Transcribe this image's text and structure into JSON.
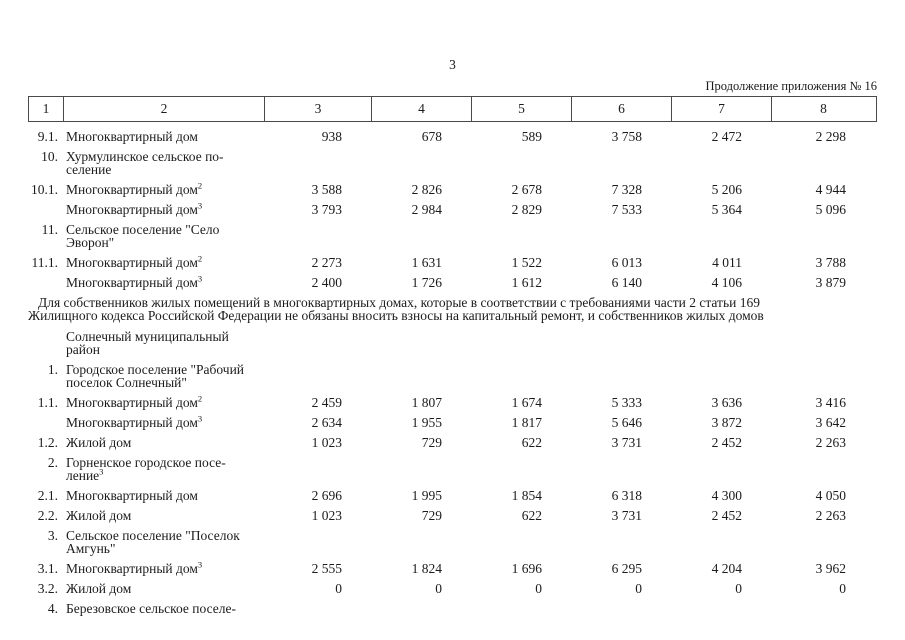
{
  "page": {
    "number": "3",
    "continuation_note": "Продолжение приложения № 16"
  },
  "colors": {
    "background": "#ffffff",
    "text": "#1b1b1b",
    "table_border": "#4a4a4a"
  },
  "table": {
    "column_headers": [
      "1",
      "2",
      "3",
      "4",
      "5",
      "6",
      "7",
      "8"
    ],
    "rows_top": [
      {
        "num": "9.1.",
        "label_lines": [
          "Многоквартирный дом"
        ],
        "sup": "",
        "values": [
          "938",
          "678",
          "589",
          "3 758",
          "2 472",
          "2 298"
        ]
      },
      {
        "num": "10.",
        "label_lines": [
          "Хурмулинское сельское по-",
          "селение"
        ],
        "sup": "",
        "values": []
      },
      {
        "num": "10.1.",
        "label_lines": [
          "Многоквартирный дом"
        ],
        "sup": "2",
        "values": [
          "3 588",
          "2 826",
          "2 678",
          "7 328",
          "5 206",
          "4 944"
        ]
      },
      {
        "num": "",
        "label_lines": [
          "Многоквартирный дом"
        ],
        "sup": "3",
        "values": [
          "3 793",
          "2 984",
          "2 829",
          "7 533",
          "5 364",
          "5 096"
        ]
      },
      {
        "num": "11.",
        "label_lines": [
          "Сельское поселение \"Село",
          "Эворон\""
        ],
        "sup": "",
        "values": []
      },
      {
        "num": "11.1.",
        "label_lines": [
          "Многоквартирный дом"
        ],
        "sup": "2",
        "values": [
          "2 273",
          "1 631",
          "1 522",
          "6 013",
          "4 011",
          "3 788"
        ]
      },
      {
        "num": "",
        "label_lines": [
          "Многоквартирный дом"
        ],
        "sup": "3",
        "values": [
          "2 400",
          "1 726",
          "1 612",
          "6 140",
          "4 106",
          "3 879"
        ]
      }
    ],
    "note_lines": [
      "Для собственников жилых помещений в многоквартирных домах, которые в соответствии с требованиями части 2 статьи 169",
      "Жилищного кодекса Российской Федерации не обязаны вносить взносы на капитальный ремонт, и собственников жилых домов"
    ],
    "rows_bottom": [
      {
        "num": "",
        "label_lines": [
          "Солнечный муниципальный",
          "район"
        ],
        "sup": "",
        "values": []
      },
      {
        "num": "1.",
        "label_lines": [
          "Городское поселение \"Рабочий",
          "поселок Солнечный\""
        ],
        "sup": "",
        "values": []
      },
      {
        "num": "1.1.",
        "label_lines": [
          "Многоквартирный дом"
        ],
        "sup": "2",
        "values": [
          "2 459",
          "1 807",
          "1 674",
          "5 333",
          "3 636",
          "3 416"
        ]
      },
      {
        "num": "",
        "label_lines": [
          "Многоквартирный дом"
        ],
        "sup": "3",
        "values": [
          "2 634",
          "1 955",
          "1 817",
          "5 646",
          "3 872",
          "3 642"
        ]
      },
      {
        "num": "1.2.",
        "label_lines": [
          "Жилой дом"
        ],
        "sup": "",
        "values": [
          "1 023",
          "729",
          "622",
          "3 731",
          "2 452",
          "2 263"
        ]
      },
      {
        "num": "2.",
        "label_lines": [
          "Горненское городское посе-",
          "ление"
        ],
        "sup": "3",
        "values": []
      },
      {
        "num": "2.1.",
        "label_lines": [
          "Многоквартирный дом"
        ],
        "sup": "",
        "values": [
          "2 696",
          "1 995",
          "1 854",
          "6 318",
          "4 300",
          "4 050"
        ]
      },
      {
        "num": "2.2.",
        "label_lines": [
          "Жилой дом"
        ],
        "sup": "",
        "values": [
          "1 023",
          "729",
          "622",
          "3 731",
          "2 452",
          "2 263"
        ]
      },
      {
        "num": "3.",
        "label_lines": [
          "Сельское поселение \"Поселок",
          "Амгунь\""
        ],
        "sup": "",
        "values": []
      },
      {
        "num": "3.1.",
        "label_lines": [
          "Многоквартирный дом"
        ],
        "sup": "3",
        "values": [
          "2 555",
          "1 824",
          "1 696",
          "6 295",
          "4 204",
          "3 962"
        ]
      },
      {
        "num": "3.2.",
        "label_lines": [
          "Жилой дом"
        ],
        "sup": "",
        "values": [
          "0",
          "0",
          "0",
          "0",
          "0",
          "0"
        ]
      },
      {
        "num": "4.",
        "label_lines": [
          "Березовское сельское поселе-"
        ],
        "sup": "",
        "values": []
      }
    ]
  }
}
